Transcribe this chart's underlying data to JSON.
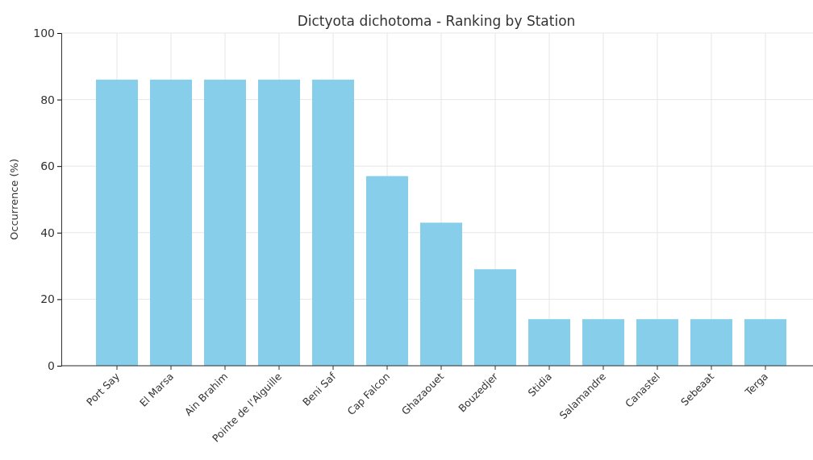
{
  "chart_data": {
    "type": "bar",
    "title": "Dictyota dichotoma - Ranking by Station",
    "ylabel": "Occurrence (%)",
    "categories": [
      "Port Say",
      "El Marsa",
      "Ain Brahim",
      "Pointe de l'Aiguille",
      "Beni Saf",
      "Cap Falcon",
      "Ghazaouet",
      "Bouzedjer",
      "Stidia",
      "Salamandre",
      "Canastel",
      "Sebeaat",
      "Terga"
    ],
    "values": [
      86,
      86,
      86,
      86,
      86,
      57,
      43,
      29,
      14,
      14,
      14,
      14,
      14
    ],
    "color": "#87ceeb",
    "ylim": [
      0,
      100
    ],
    "yticks": [
      0,
      20,
      40,
      60,
      80,
      100
    ],
    "grid": true
  }
}
